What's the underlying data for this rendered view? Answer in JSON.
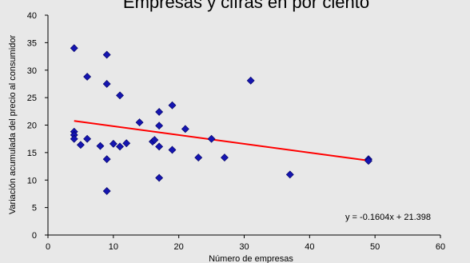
{
  "chart_data": {
    "type": "scatter",
    "title": "Empresas y cifras en por ciento",
    "xlabel": "Número de empresas",
    "ylabel": "Variación acumulada  del precio al consumidor",
    "xlim": [
      0,
      60
    ],
    "ylim": [
      0,
      40
    ],
    "xticks": [
      "0",
      "10",
      "20",
      "30",
      "40",
      "50",
      "60"
    ],
    "yticks": [
      "0",
      "5",
      "10",
      "15",
      "20",
      "25",
      "30",
      "35",
      "40"
    ],
    "grid": false,
    "series": [
      {
        "marker": "diamond",
        "color": "#1515b0",
        "points": [
          [
            4,
            34
          ],
          [
            4,
            18.8
          ],
          [
            4,
            18.2
          ],
          [
            4,
            17.5
          ],
          [
            5,
            16.4
          ],
          [
            6,
            28.8
          ],
          [
            6,
            17.5
          ],
          [
            8,
            16.2
          ],
          [
            9,
            32.8
          ],
          [
            9,
            27.5
          ],
          [
            9,
            13.8
          ],
          [
            9,
            8
          ],
          [
            10,
            16.6
          ],
          [
            11,
            25.4
          ],
          [
            11,
            16.1
          ],
          [
            12,
            16.7
          ],
          [
            14,
            20.5
          ],
          [
            16,
            17
          ],
          [
            16.3,
            17.3
          ],
          [
            17,
            22.4
          ],
          [
            17,
            19.9
          ],
          [
            17,
            16.1
          ],
          [
            17,
            10.4
          ],
          [
            19,
            23.6
          ],
          [
            19,
            15.5
          ],
          [
            21,
            19.3
          ],
          [
            23,
            14.1
          ],
          [
            25,
            17.5
          ],
          [
            27,
            14.1
          ],
          [
            31,
            28.1
          ],
          [
            37,
            11
          ],
          [
            49,
            13.8
          ],
          [
            49,
            13.5
          ]
        ]
      }
    ],
    "trendline": {
      "color": "#ff0000",
      "slope": -0.1604,
      "intercept": 21.398,
      "x_range": [
        4,
        49
      ],
      "equation": "y = -0.1604x + 21.398"
    }
  }
}
